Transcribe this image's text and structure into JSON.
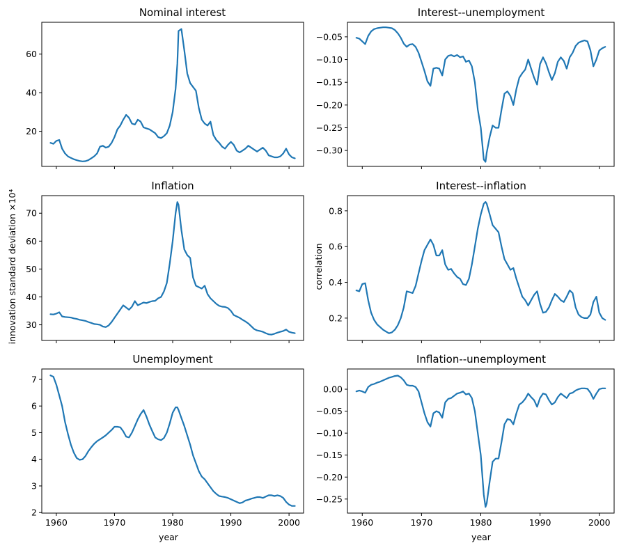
{
  "shared": {
    "xticks": [
      1960,
      1970,
      1980,
      1990,
      2000
    ],
    "xlim": [
      1957.5,
      2002.5
    ],
    "xlabel": "year",
    "ylabel_left": "innovation standard deviation ×10⁴",
    "ylabel_right": "correlation",
    "line_color": "#1f77b4"
  },
  "chart_data": [
    {
      "type": "line",
      "panel": "top-left",
      "title": "Nominal interest",
      "ylim": [
        1.8,
        76.5
      ],
      "yticks": [
        20,
        40,
        60
      ],
      "x": [
        1959,
        1959.5,
        1960,
        1960.5,
        1961,
        1961.5,
        1962,
        1962.5,
        1963,
        1963.5,
        1964,
        1964.5,
        1965,
        1965.5,
        1966,
        1966.5,
        1967,
        1967.5,
        1968,
        1968.5,
        1969,
        1969.5,
        1970,
        1970.5,
        1971,
        1971.5,
        1972,
        1972.5,
        1973,
        1973.5,
        1974,
        1974.5,
        1975,
        1975.5,
        1976,
        1976.5,
        1977,
        1977.5,
        1978,
        1978.5,
        1979,
        1979.5,
        1980,
        1980.5,
        1980.8,
        1981,
        1981.5,
        1982,
        1982.5,
        1983,
        1983.5,
        1984,
        1984.5,
        1985,
        1985.5,
        1986,
        1986.5,
        1987,
        1987.5,
        1988,
        1988.5,
        1989,
        1989.5,
        1990,
        1990.5,
        1991,
        1991.5,
        1992,
        1992.5,
        1993,
        1993.5,
        1994,
        1994.5,
        1995,
        1995.5,
        1996,
        1996.5,
        1997,
        1997.5,
        1998,
        1998.5,
        1999,
        1999.5,
        2000,
        2000.5,
        2001
      ],
      "values": [
        14,
        13.5,
        15,
        15.5,
        11,
        8.5,
        7,
        6.2,
        5.5,
        5,
        4.6,
        4.4,
        4.5,
        5,
        6,
        7,
        8.5,
        12,
        12.5,
        11.5,
        12,
        14,
        17,
        21,
        23,
        26,
        28.5,
        27,
        24,
        23.5,
        26,
        25,
        22,
        21.5,
        21,
        20,
        19,
        17,
        16.5,
        17.5,
        19,
        23,
        30,
        42,
        55,
        72,
        73,
        62,
        50,
        45,
        43,
        41,
        32,
        26,
        24,
        23,
        25,
        18,
        15.5,
        14,
        12,
        11,
        13,
        14.5,
        13,
        10,
        9,
        10,
        11,
        12.5,
        11.5,
        10.5,
        9.5,
        10.5,
        11.5,
        10,
        7.5,
        7,
        6.5,
        6.5,
        7,
        8.5,
        11,
        8,
        6.5,
        6
      ]
    },
    {
      "type": "line",
      "panel": "top-right",
      "title": "Interest--unemployment",
      "ylim": [
        -0.335,
        -0.018
      ],
      "yticks": [
        -0.05,
        -0.1,
        -0.15,
        -0.2,
        -0.25,
        -0.3
      ],
      "ytick_labels": [
        "−0.05",
        "−0.10",
        "−0.15",
        "−0.20",
        "−0.25",
        "−0.30"
      ],
      "x": [
        1959,
        1959.5,
        1960,
        1960.5,
        1961,
        1961.5,
        1962,
        1962.5,
        1963,
        1963.5,
        1964,
        1964.5,
        1965,
        1965.5,
        1966,
        1966.5,
        1967,
        1967.5,
        1968,
        1968.5,
        1969,
        1969.5,
        1970,
        1970.5,
        1971,
        1971.5,
        1972,
        1972.5,
        1973,
        1973.5,
        1974,
        1974.5,
        1975,
        1975.5,
        1976,
        1976.5,
        1977,
        1977.5,
        1978,
        1978.5,
        1979,
        1979.5,
        1980,
        1980.5,
        1980.8,
        1981,
        1981.5,
        1982,
        1982.5,
        1983,
        1983.5,
        1984,
        1984.5,
        1985,
        1985.5,
        1986,
        1986.5,
        1987,
        1987.5,
        1988,
        1988.5,
        1989,
        1989.5,
        1990,
        1990.5,
        1991,
        1991.5,
        1992,
        1992.5,
        1993,
        1993.5,
        1994,
        1994.5,
        1995,
        1995.5,
        1996,
        1996.5,
        1997,
        1997.5,
        1998,
        1998.5,
        1999,
        1999.5,
        2000,
        2000.5,
        2001
      ],
      "values": [
        -0.052,
        -0.054,
        -0.06,
        -0.066,
        -0.048,
        -0.038,
        -0.033,
        -0.031,
        -0.03,
        -0.029,
        -0.029,
        -0.03,
        -0.031,
        -0.035,
        -0.042,
        -0.052,
        -0.065,
        -0.072,
        -0.067,
        -0.066,
        -0.072,
        -0.085,
        -0.105,
        -0.125,
        -0.148,
        -0.158,
        -0.12,
        -0.118,
        -0.12,
        -0.135,
        -0.1,
        -0.092,
        -0.09,
        -0.093,
        -0.09,
        -0.095,
        -0.093,
        -0.105,
        -0.102,
        -0.115,
        -0.15,
        -0.21,
        -0.25,
        -0.32,
        -0.325,
        -0.305,
        -0.27,
        -0.245,
        -0.25,
        -0.25,
        -0.21,
        -0.175,
        -0.17,
        -0.18,
        -0.2,
        -0.165,
        -0.14,
        -0.13,
        -0.122,
        -0.1,
        -0.12,
        -0.14,
        -0.155,
        -0.11,
        -0.095,
        -0.108,
        -0.128,
        -0.145,
        -0.13,
        -0.105,
        -0.095,
        -0.103,
        -0.12,
        -0.095,
        -0.085,
        -0.07,
        -0.063,
        -0.06,
        -0.058,
        -0.06,
        -0.08,
        -0.115,
        -0.1,
        -0.08,
        -0.075,
        -0.072
      ]
    },
    {
      "type": "line",
      "panel": "middle-left",
      "title": "Inflation",
      "ylim": [
        24.4,
        76.3
      ],
      "yticks": [
        30,
        40,
        50,
        60,
        70
      ],
      "x": [
        1959,
        1959.5,
        1960,
        1960.5,
        1961,
        1961.5,
        1962,
        1962.5,
        1963,
        1963.5,
        1964,
        1964.5,
        1965,
        1965.5,
        1966,
        1966.5,
        1967,
        1967.5,
        1968,
        1968.5,
        1969,
        1969.5,
        1970,
        1970.5,
        1971,
        1971.5,
        1972,
        1972.5,
        1973,
        1973.5,
        1974,
        1974.5,
        1975,
        1975.5,
        1976,
        1976.5,
        1977,
        1977.5,
        1978,
        1978.5,
        1979,
        1979.5,
        1980,
        1980.5,
        1980.8,
        1981,
        1981.5,
        1982,
        1982.5,
        1983,
        1983.5,
        1984,
        1984.5,
        1985,
        1985.5,
        1986,
        1986.5,
        1987,
        1987.5,
        1988,
        1988.5,
        1989,
        1989.5,
        1990,
        1990.5,
        1991,
        1991.5,
        1992,
        1992.5,
        1993,
        1993.5,
        1994,
        1994.5,
        1995,
        1995.5,
        1996,
        1996.5,
        1997,
        1997.5,
        1998,
        1998.5,
        1999,
        1999.5,
        2000,
        2000.5,
        2001
      ],
      "values": [
        33.8,
        33.7,
        34,
        34.5,
        33,
        32.8,
        32.7,
        32.6,
        32.3,
        32.1,
        31.8,
        31.6,
        31.4,
        31,
        30.7,
        30.3,
        30.2,
        30,
        29.4,
        29.2,
        29.8,
        31,
        32.5,
        34,
        35.5,
        37,
        36.2,
        35.4,
        36.5,
        38.5,
        37,
        37.5,
        38,
        37.8,
        38.2,
        38.5,
        38.6,
        39.5,
        40,
        42,
        45,
        52,
        60,
        70,
        74,
        73,
        64,
        57,
        55,
        54,
        47,
        44,
        43.5,
        43,
        44,
        41,
        39.5,
        38.5,
        37.5,
        36.8,
        36.5,
        36.4,
        36,
        35,
        33.5,
        33,
        32.5,
        31.8,
        31.2,
        30.5,
        29.5,
        28.5,
        28,
        27.8,
        27.5,
        27,
        26.6,
        26.5,
        26.8,
        27.2,
        27.5,
        27.8,
        28.3,
        27.5,
        27.2,
        27
      ]
    },
    {
      "type": "line",
      "panel": "middle-right",
      "title": "Interest--inflation",
      "ylabel": "correlation",
      "ylim": [
        0.075,
        0.885
      ],
      "yticks": [
        0.2,
        0.4,
        0.6,
        0.8
      ],
      "x": [
        1959,
        1959.5,
        1960,
        1960.5,
        1961,
        1961.5,
        1962,
        1962.5,
        1963,
        1963.5,
        1964,
        1964.5,
        1965,
        1965.5,
        1966,
        1966.5,
        1967,
        1967.5,
        1968,
        1968.5,
        1969,
        1969.5,
        1970,
        1970.5,
        1971,
        1971.5,
        1972,
        1972.5,
        1973,
        1973.5,
        1974,
        1974.5,
        1975,
        1975.5,
        1976,
        1976.5,
        1977,
        1977.5,
        1978,
        1978.5,
        1979,
        1979.5,
        1980,
        1980.5,
        1980.8,
        1981,
        1981.5,
        1982,
        1982.5,
        1983,
        1983.5,
        1984,
        1984.5,
        1985,
        1985.5,
        1986,
        1986.5,
        1987,
        1987.5,
        1988,
        1988.5,
        1989,
        1989.5,
        1990,
        1990.5,
        1991,
        1991.5,
        1992,
        1992.5,
        1993,
        1993.5,
        1994,
        1994.5,
        1995,
        1995.5,
        1996,
        1996.5,
        1997,
        1997.5,
        1998,
        1998.5,
        1999,
        1999.5,
        2000,
        2000.5,
        2001
      ],
      "values": [
        0.355,
        0.35,
        0.39,
        0.395,
        0.3,
        0.23,
        0.19,
        0.165,
        0.15,
        0.135,
        0.125,
        0.115,
        0.12,
        0.135,
        0.16,
        0.2,
        0.26,
        0.35,
        0.345,
        0.34,
        0.38,
        0.45,
        0.52,
        0.58,
        0.61,
        0.64,
        0.61,
        0.55,
        0.55,
        0.58,
        0.5,
        0.47,
        0.475,
        0.45,
        0.43,
        0.42,
        0.39,
        0.385,
        0.42,
        0.5,
        0.6,
        0.7,
        0.78,
        0.84,
        0.85,
        0.84,
        0.78,
        0.72,
        0.7,
        0.68,
        0.6,
        0.53,
        0.5,
        0.47,
        0.48,
        0.42,
        0.37,
        0.32,
        0.3,
        0.27,
        0.3,
        0.33,
        0.35,
        0.28,
        0.23,
        0.235,
        0.26,
        0.3,
        0.335,
        0.32,
        0.3,
        0.29,
        0.32,
        0.355,
        0.34,
        0.26,
        0.22,
        0.205,
        0.2,
        0.2,
        0.22,
        0.29,
        0.32,
        0.23,
        0.2,
        0.19
      ]
    },
    {
      "type": "line",
      "panel": "bottom-left",
      "title": "Unemployment",
      "ylim": [
        1.98,
        7.39
      ],
      "yticks": [
        2,
        3,
        4,
        5,
        6,
        7
      ],
      "x": [
        1959,
        1959.5,
        1960,
        1960.5,
        1961,
        1961.5,
        1962,
        1962.5,
        1963,
        1963.5,
        1964,
        1964.5,
        1965,
        1965.5,
        1966,
        1966.5,
        1967,
        1967.5,
        1968,
        1968.5,
        1969,
        1969.5,
        1970,
        1970.5,
        1971,
        1971.5,
        1972,
        1972.5,
        1973,
        1973.5,
        1974,
        1974.5,
        1975,
        1975.5,
        1976,
        1976.5,
        1977,
        1977.5,
        1978,
        1978.5,
        1979,
        1979.5,
        1980,
        1980.5,
        1980.8,
        1981,
        1981.5,
        1982,
        1982.5,
        1983,
        1983.5,
        1984,
        1984.5,
        1985,
        1985.5,
        1986,
        1986.5,
        1987,
        1987.5,
        1988,
        1988.5,
        1989,
        1989.5,
        1990,
        1990.5,
        1991,
        1991.5,
        1992,
        1992.5,
        1993,
        1993.5,
        1994,
        1994.5,
        1995,
        1995.5,
        1996,
        1996.5,
        1997,
        1997.5,
        1998,
        1998.5,
        1999,
        1999.5,
        2000,
        2000.5,
        2001
      ],
      "values": [
        7.15,
        7.1,
        6.8,
        6.4,
        6,
        5.4,
        4.95,
        4.55,
        4.25,
        4.05,
        3.98,
        4,
        4.12,
        4.3,
        4.45,
        4.58,
        4.68,
        4.75,
        4.82,
        4.9,
        5,
        5.1,
        5.22,
        5.22,
        5.2,
        5.05,
        4.85,
        4.82,
        5,
        5.25,
        5.5,
        5.7,
        5.85,
        5.6,
        5.3,
        5.05,
        4.82,
        4.75,
        4.72,
        4.8,
        5,
        5.35,
        5.75,
        5.95,
        5.95,
        5.85,
        5.55,
        5.25,
        4.9,
        4.55,
        4.15,
        3.85,
        3.55,
        3.35,
        3.25,
        3.1,
        2.95,
        2.8,
        2.7,
        2.62,
        2.6,
        2.58,
        2.55,
        2.5,
        2.45,
        2.4,
        2.35,
        2.38,
        2.45,
        2.48,
        2.52,
        2.55,
        2.58,
        2.58,
        2.55,
        2.6,
        2.65,
        2.65,
        2.62,
        2.65,
        2.62,
        2.55,
        2.4,
        2.3,
        2.25,
        2.25
      ]
    },
    {
      "type": "line",
      "panel": "bottom-right",
      "title": "Inflation--unemployment",
      "ylim": [
        -0.282,
        0.046
      ],
      "yticks": [
        0.0,
        -0.05,
        -0.1,
        -0.15,
        -0.2,
        -0.25
      ],
      "ytick_labels": [
        "0.00",
        "−0.05",
        "−0.10",
        "−0.15",
        "−0.20",
        "−0.25"
      ],
      "x": [
        1959,
        1959.5,
        1960,
        1960.5,
        1961,
        1961.5,
        1962,
        1962.5,
        1963,
        1963.5,
        1964,
        1964.5,
        1965,
        1965.5,
        1966,
        1966.5,
        1967,
        1967.5,
        1968,
        1968.5,
        1969,
        1969.5,
        1970,
        1970.5,
        1971,
        1971.5,
        1972,
        1972.5,
        1973,
        1973.5,
        1974,
        1974.5,
        1975,
        1975.5,
        1976,
        1976.5,
        1977,
        1977.5,
        1978,
        1978.5,
        1979,
        1979.5,
        1980,
        1980.5,
        1980.8,
        1981,
        1981.5,
        1982,
        1982.5,
        1983,
        1983.5,
        1984,
        1984.5,
        1985,
        1985.5,
        1986,
        1986.5,
        1987,
        1987.5,
        1988,
        1988.5,
        1989,
        1989.5,
        1990,
        1990.5,
        1991,
        1991.5,
        1992,
        1992.5,
        1993,
        1993.5,
        1994,
        1994.5,
        1995,
        1995.5,
        1996,
        1996.5,
        1997,
        1997.5,
        1998,
        1998.5,
        1999,
        1999.5,
        2000,
        2000.5,
        2001
      ],
      "values": [
        -0.005,
        -0.003,
        -0.005,
        -0.008,
        0.005,
        0.01,
        0.012,
        0.015,
        0.017,
        0.02,
        0.023,
        0.026,
        0.028,
        0.03,
        0.031,
        0.027,
        0.02,
        0.01,
        0.008,
        0.008,
        0.005,
        -0.005,
        -0.03,
        -0.055,
        -0.075,
        -0.085,
        -0.055,
        -0.05,
        -0.053,
        -0.065,
        -0.03,
        -0.022,
        -0.02,
        -0.015,
        -0.01,
        -0.008,
        -0.005,
        -0.012,
        -0.01,
        -0.02,
        -0.05,
        -0.1,
        -0.15,
        -0.24,
        -0.268,
        -0.26,
        -0.21,
        -0.165,
        -0.158,
        -0.158,
        -0.12,
        -0.08,
        -0.068,
        -0.07,
        -0.08,
        -0.055,
        -0.035,
        -0.03,
        -0.022,
        -0.01,
        -0.018,
        -0.025,
        -0.04,
        -0.02,
        -0.01,
        -0.012,
        -0.025,
        -0.035,
        -0.03,
        -0.018,
        -0.01,
        -0.015,
        -0.02,
        -0.01,
        -0.008,
        -0.003,
        0,
        0.002,
        0.002,
        0.001,
        -0.008,
        -0.022,
        -0.01,
        0,
        0.002,
        0.002
      ]
    }
  ]
}
